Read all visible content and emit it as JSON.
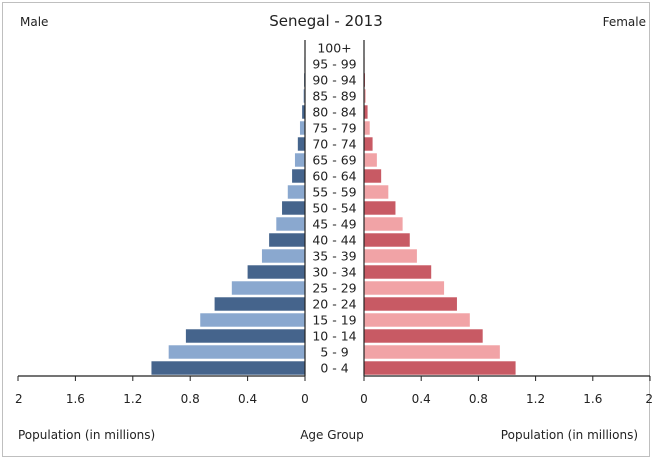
{
  "chart_data": {
    "type": "bar",
    "orientation": "population-pyramid",
    "title": "Senegal - 2013",
    "left_label": "Male",
    "right_label": "Female",
    "xlabel_left": "Population (in millions)",
    "xlabel_center": "Age Group",
    "xlabel_right": "Population (in millions)",
    "xlim": [
      0,
      2
    ],
    "x_ticks": [
      "2",
      "1.6",
      "1.2",
      "0.8",
      "0.4",
      "0",
      "0",
      "0.4",
      "0.8",
      "1.2",
      "1.6",
      "2"
    ],
    "categories": [
      "100+",
      "95 - 99",
      "90 - 94",
      "85 - 89",
      "80 - 84",
      "75 - 79",
      "70 - 74",
      "65 - 69",
      "60 - 64",
      "55 - 59",
      "50 - 54",
      "45 - 49",
      "40 - 44",
      "35 - 39",
      "30 - 34",
      "25 - 29",
      "20 - 24",
      "15 - 19",
      "10 - 14",
      "5 - 9",
      "0 - 4"
    ],
    "series": [
      {
        "name": "Male",
        "values": [
          0.002,
          0.004,
          0.006,
          0.01,
          0.02,
          0.035,
          0.05,
          0.07,
          0.09,
          0.12,
          0.16,
          0.2,
          0.25,
          0.3,
          0.4,
          0.51,
          0.63,
          0.73,
          0.83,
          0.95,
          1.07
        ],
        "colors": [
          "#45648c",
          "#8aa8cf"
        ]
      },
      {
        "name": "Female",
        "values": [
          0.002,
          0.004,
          0.007,
          0.012,
          0.025,
          0.04,
          0.06,
          0.09,
          0.12,
          0.17,
          0.22,
          0.27,
          0.32,
          0.37,
          0.47,
          0.56,
          0.65,
          0.74,
          0.83,
          0.95,
          1.06
        ],
        "colors": [
          "#c85a64",
          "#f1a3a6"
        ]
      }
    ],
    "grid": false
  }
}
